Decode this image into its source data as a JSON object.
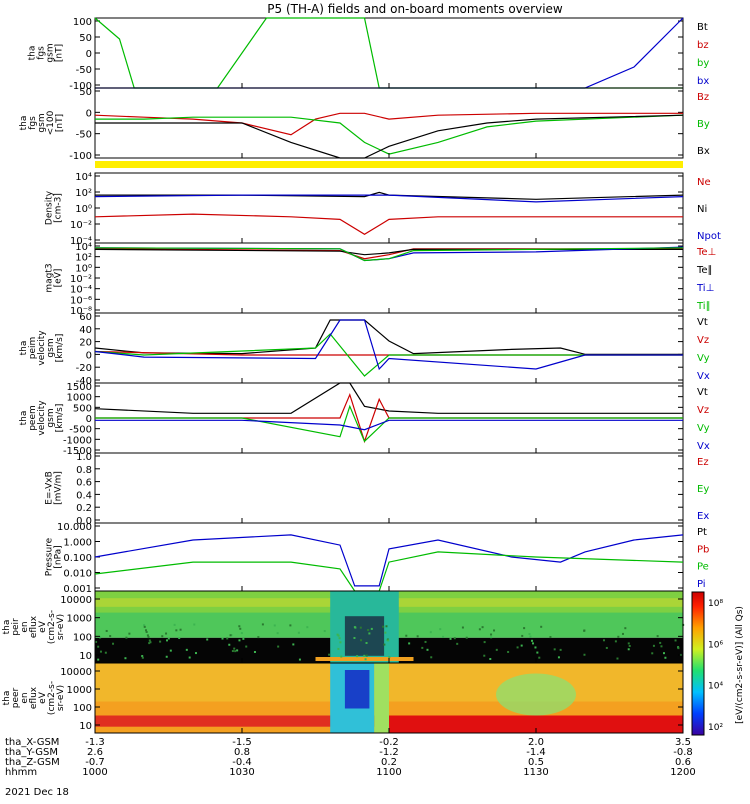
{
  "title": "P5 (TH-A) fields and on-board moments overview",
  "panels": [
    {
      "id": "fgs",
      "ylabel": [
        "tha",
        "fgs",
        "gsm",
        "[nT]"
      ],
      "ticks": [
        "100",
        "50",
        "0",
        "-50",
        "-100"
      ],
      "legend": [
        {
          "label": "Bt",
          "color": "#000000"
        },
        {
          "label": "bz",
          "color": "#cc0000"
        },
        {
          "label": "by",
          "color": "#00bb00"
        },
        {
          "label": "bx",
          "color": "#0000cc"
        }
      ]
    },
    {
      "id": "fgs-clip",
      "ylabel": [
        "tha",
        "fgs",
        "gsm",
        "<100",
        "[nT]"
      ],
      "ticks": [
        "50",
        "0",
        "-50",
        "-100"
      ],
      "legend": [
        {
          "label": "Bz",
          "color": "#cc0000"
        },
        {
          "label": "By",
          "color": "#00bb00"
        },
        {
          "label": "Bx",
          "color": "#000000"
        }
      ]
    },
    {
      "id": "density",
      "ylabel": [
        "Density",
        "[cm-3]"
      ],
      "ticks": [
        "10⁴",
        "10²",
        "10⁰",
        "10⁻²",
        "10⁻⁴"
      ],
      "legend": [
        {
          "label": "Ne",
          "color": "#cc0000"
        },
        {
          "label": "Ni",
          "color": "#000000"
        },
        {
          "label": "Npot",
          "color": "#0000cc"
        }
      ]
    },
    {
      "id": "temp",
      "ylabel": [
        "magt3",
        "[eV]"
      ],
      "ticks": [
        "10⁴",
        "10²",
        "10⁰",
        "10⁻²",
        "10⁻⁴",
        "10⁻⁶",
        "10⁻⁸"
      ],
      "legend": [
        {
          "label": "Te⊥",
          "color": "#cc0000"
        },
        {
          "label": "Te∥",
          "color": "#000000"
        },
        {
          "label": "Ti⊥",
          "color": "#0000cc"
        },
        {
          "label": "Ti∥",
          "color": "#00bb00"
        }
      ]
    },
    {
      "id": "peim",
      "ylabel": [
        "tha",
        "peim",
        "velocity",
        "gsm",
        "[km/s]"
      ],
      "ticks": [
        "60",
        "40",
        "20",
        "0",
        "-20",
        "-40"
      ],
      "legend": [
        {
          "label": "Vt",
          "color": "#000000"
        },
        {
          "label": "Vz",
          "color": "#cc0000"
        },
        {
          "label": "Vy",
          "color": "#00bb00"
        },
        {
          "label": "Vx",
          "color": "#0000cc"
        }
      ]
    },
    {
      "id": "peem",
      "ylabel": [
        "tha",
        "peem",
        "velocity",
        "gsm",
        "[km/s]"
      ],
      "ticks": [
        "1500",
        "1000",
        "500",
        "0",
        "-500",
        "-1000",
        "-1500"
      ],
      "legend": [
        {
          "label": "Vt",
          "color": "#000000"
        },
        {
          "label": "Vz",
          "color": "#cc0000"
        },
        {
          "label": "Vy",
          "color": "#00bb00"
        },
        {
          "label": "Vx",
          "color": "#0000cc"
        }
      ]
    },
    {
      "id": "efield",
      "ylabel": [
        "E=-VxB",
        "[mV/m]"
      ],
      "ticks": [
        "1.0",
        "0.8",
        "0.6",
        "0.4",
        "0.2",
        "0.0"
      ],
      "legend": [
        {
          "label": "Ez",
          "color": "#cc0000"
        },
        {
          "label": "Ey",
          "color": "#00bb00"
        },
        {
          "label": "Ex",
          "color": "#0000cc"
        }
      ]
    },
    {
      "id": "pressure",
      "ylabel": [
        "Pressure",
        "[nPa]"
      ],
      "ticks": [
        "10.000",
        "1.000",
        "0.100",
        "0.010",
        "0.001"
      ],
      "legend": [
        {
          "label": "Pt",
          "color": "#000000"
        },
        {
          "label": "Pb",
          "color": "#cc0000"
        },
        {
          "label": "Pe",
          "color": "#00bb00"
        },
        {
          "label": "Pi",
          "color": "#0000cc"
        }
      ]
    },
    {
      "id": "peir",
      "ylabel": [
        "tha",
        "peir",
        "en",
        "eflux",
        "eV",
        "(cm2-s-",
        "sr-eV)"
      ],
      "ticks": [
        "10000",
        "1000",
        "100",
        "10"
      ],
      "legend": []
    },
    {
      "id": "peer",
      "ylabel": [
        "tha",
        "peer",
        "en",
        "eflux",
        "eV",
        "(cm2-s-",
        "sr-eV)"
      ],
      "ticks": [
        "10000",
        "1000",
        "100",
        "10"
      ],
      "legend": []
    }
  ],
  "colorbar": {
    "label": "[eV/(cm2-s-sr-eV)] (All Qs)",
    "ticks": [
      "10⁸",
      "10⁶",
      "10⁴",
      "10²"
    ]
  },
  "xaxis": {
    "rows": [
      {
        "label": "tha_X-GSM",
        "values": [
          "-1.3",
          "-1.5",
          "-0.2",
          "2.0",
          "3.5"
        ]
      },
      {
        "label": "tha_Y-GSM",
        "values": [
          "2.6",
          "0.8",
          "-1.2",
          "-1.4",
          "-0.8"
        ]
      },
      {
        "label": "tha_Z-GSM",
        "values": [
          "-0.7",
          "-0.4",
          "0.2",
          "0.5",
          "0.6"
        ]
      },
      {
        "label": "hhmm",
        "values": [
          "1000",
          "1030",
          "1100",
          "1130",
          "1200"
        ]
      }
    ],
    "date": "2021 Dec 18"
  },
  "chart_data": {
    "type": "line",
    "title": "P5 (TH-A) fields and on-board moments overview",
    "x_time_hhmm": [
      "1000",
      "1030",
      "1100",
      "1130",
      "1200"
    ],
    "panels": [
      {
        "name": "tha fgs gsm [nT]",
        "ylim": [
          -100,
          100
        ],
        "series": [
          {
            "name": "by",
            "x": [
              "1000",
              "1005",
              "1008",
              "1025",
              "1035",
              "1045",
              "1055",
              "1058",
              "1100",
              "1105",
              "1200"
            ],
            "y": [
              100,
              40,
              -100,
              -100,
              100,
              100,
              100,
              -100,
              -100,
              -100,
              -100
            ]
          },
          {
            "name": "bx",
            "x": [
              "1000",
              "1030",
              "1055",
              "1100",
              "1120",
              "1140",
              "1150",
              "1200"
            ],
            "y": [
              -100,
              -100,
              -100,
              -100,
              -100,
              -100,
              -40,
              100
            ]
          }
        ]
      },
      {
        "name": "tha fgs gsm <100 [nT]",
        "ylim": [
          -120,
          60
        ],
        "series": [
          {
            "name": "Bz",
            "x": [
              "1000",
              "1010",
              "1020",
              "1030",
              "1040",
              "1045",
              "1050",
              "1055",
              "1100",
              "1110",
              "1130",
              "1200"
            ],
            "y": [
              -10,
              -15,
              -20,
              -30,
              -60,
              -20,
              -5,
              -5,
              -20,
              -10,
              -5,
              -5
            ]
          },
          {
            "name": "By",
            "x": [
              "1000",
              "1010",
              "1020",
              "1030",
              "1040",
              "1050",
              "1055",
              "1100",
              "1110",
              "1120",
              "1130",
              "1200"
            ],
            "y": [
              -20,
              -20,
              -15,
              -15,
              -15,
              -30,
              -80,
              -110,
              -80,
              -40,
              -25,
              -10
            ]
          },
          {
            "name": "Bx",
            "x": [
              "1000",
              "1010",
              "1020",
              "1030",
              "1040",
              "1050",
              "1055",
              "1100",
              "1110",
              "1120",
              "1130",
              "1200"
            ],
            "y": [
              -30,
              -30,
              -30,
              -30,
              -80,
              -120,
              -120,
              -90,
              -50,
              -30,
              -20,
              -10
            ]
          }
        ]
      },
      {
        "name": "Density [cm-3]",
        "yscale": "log",
        "ylim": [
          0.0001,
          10000
        ],
        "series": [
          {
            "name": "Ne",
            "x": [
              "1000",
              "1020",
              "1040",
              "1050",
              "1055",
              "1100",
              "1110",
              "1130",
              "1200"
            ],
            "y": [
              0.1,
              0.2,
              0.1,
              0.05,
              0.001,
              0.05,
              0.1,
              0.1,
              0.1
            ]
          },
          {
            "name": "Ni",
            "x": [
              "1000",
              "1030",
              "1055",
              "1058",
              "1100",
              "1130",
              "1200"
            ],
            "y": [
              30,
              30,
              20,
              60,
              30,
              10,
              30
            ]
          },
          {
            "name": "Npot",
            "x": [
              "1000",
              "1030",
              "1055",
              "1100",
              "1130",
              "1200"
            ],
            "y": [
              20,
              30,
              30,
              30,
              5,
              20
            ]
          }
        ]
      },
      {
        "name": "magt3 [eV]",
        "yscale": "log",
        "ylim": [
          1e-08,
          10000
        ],
        "series": [
          {
            "name": "Te⊥",
            "x": [
              "1000",
              "1050",
              "1055",
              "1100",
              "1105",
              "1200"
            ],
            "y": [
              1000,
              500,
              20,
              100,
              1000,
              1000
            ]
          },
          {
            "name": "Te∥",
            "x": [
              "1000",
              "1050",
              "1055",
              "1100",
              "1105",
              "1200"
            ],
            "y": [
              800,
              400,
              100,
              200,
              800,
              800
            ]
          },
          {
            "name": "Ti⊥",
            "x": [
              "1000",
              "1050",
              "1055",
              "1100",
              "1105",
              "1130",
              "1200"
            ],
            "y": [
              1500,
              1000,
              10,
              20,
              200,
              300,
              2000
            ]
          },
          {
            "name": "Ti∥",
            "x": [
              "1000",
              "1050",
              "1055",
              "1100",
              "1105",
              "1200"
            ],
            "y": [
              1500,
              1000,
              10,
              20,
              500,
              1500
            ]
          }
        ]
      },
      {
        "name": "tha peim velocity gsm [km/s]",
        "ylim": [
          -40,
          60
        ],
        "series": [
          {
            "name": "Vt",
            "x": [
              "1000",
              "1010",
              "1030",
              "1045",
              "1048",
              "1055",
              "1100",
              "1105",
              "1125",
              "1135",
              "1140",
              "1200"
            ],
            "y": [
              10,
              3,
              2,
              10,
              50,
              50,
              20,
              2,
              8,
              10,
              1,
              1
            ]
          },
          {
            "name": "Vz",
            "x": [
              "1000",
              "1030",
              "1055",
              "1100",
              "1200"
            ],
            "y": [
              5,
              0,
              0,
              0,
              0
            ]
          },
          {
            "name": "Vy",
            "x": [
              "1000",
              "1010",
              "1045",
              "1048",
              "1055",
              "1100",
              "1105",
              "1200"
            ],
            "y": [
              5,
              0,
              10,
              30,
              -30,
              0,
              0,
              0
            ]
          },
          {
            "name": "Vx",
            "x": [
              "1000",
              "1010",
              "1045",
              "1050",
              "1055",
              "1058",
              "1100",
              "1130",
              "1135",
              "1140",
              "1200"
            ],
            "y": [
              5,
              -3,
              -5,
              50,
              50,
              -20,
              -5,
              -20,
              -10,
              0,
              0
            ]
          }
        ]
      },
      {
        "name": "tha peem velocity gsm [km/s]",
        "ylim": [
          -1500,
          1500
        ],
        "series": [
          {
            "name": "Vt",
            "x": [
              "1000",
              "1020",
              "1040",
              "1050",
              "1052",
              "1055",
              "1100",
              "1110",
              "1200"
            ],
            "y": [
              400,
              200,
              200,
              1500,
              1500,
              500,
              300,
              200,
              200
            ]
          },
          {
            "name": "Vz",
            "x": [
              "1000",
              "1030",
              "1050",
              "1052",
              "1055",
              "1058",
              "1100",
              "1200"
            ],
            "y": [
              0,
              0,
              0,
              1000,
              -1000,
              800,
              0,
              0
            ]
          },
          {
            "name": "Vy",
            "x": [
              "1000",
              "1030",
              "1050",
              "1052",
              "1055",
              "1100",
              "1200"
            ],
            "y": [
              0,
              0,
              -800,
              500,
              -1000,
              0,
              0
            ]
          },
          {
            "name": "Vx",
            "x": [
              "1000",
              "1030",
              "1050",
              "1055",
              "1100",
              "1200"
            ],
            "y": [
              -100,
              -100,
              -300,
              -500,
              -100,
              -100
            ]
          }
        ]
      },
      {
        "name": "E=-VxB [mV/m]",
        "ylim": [
          0,
          1
        ],
        "series": []
      },
      {
        "name": "Pressure [nPa]",
        "yscale": "log",
        "ylim": [
          0.001,
          10
        ],
        "series": [
          {
            "name": "Pi",
            "x": [
              "1000",
              "1020",
              "1040",
              "1050",
              "1053",
              "1058",
              "1100",
              "1110",
              "1125",
              "1135",
              "1140",
              "1150",
              "1200"
            ],
            "y": [
              0.1,
              1.0,
              2.0,
              0.5,
              0.002,
              0.002,
              0.3,
              1.0,
              0.1,
              0.05,
              0.2,
              1.0,
              2.0
            ]
          },
          {
            "name": "Pe",
            "x": [
              "1000",
              "1020",
              "1040",
              "1050",
              "1053",
              "1058",
              "1100",
              "1110",
              "1130",
              "1200"
            ],
            "y": [
              0.01,
              0.05,
              0.05,
              0.02,
              0.001,
              0.001,
              0.05,
              0.2,
              0.1,
              0.05
            ]
          }
        ]
      },
      {
        "name": "tha peir en eflux",
        "type": "heatmap",
        "yscale": "log",
        "ylim": [
          5,
          30000
        ],
        "zscale": "log",
        "zlim": [
          100,
          100000000
        ]
      },
      {
        "name": "tha peer en eflux",
        "type": "heatmap",
        "yscale": "log",
        "ylim": [
          5,
          30000
        ],
        "zscale": "log",
        "zlim": [
          100,
          100000000
        ]
      }
    ],
    "colors": {
      "black": "#000000",
      "red": "#cc0000",
      "green": "#00bb00",
      "blue": "#0000cc",
      "yellow": "#ffee00"
    }
  }
}
